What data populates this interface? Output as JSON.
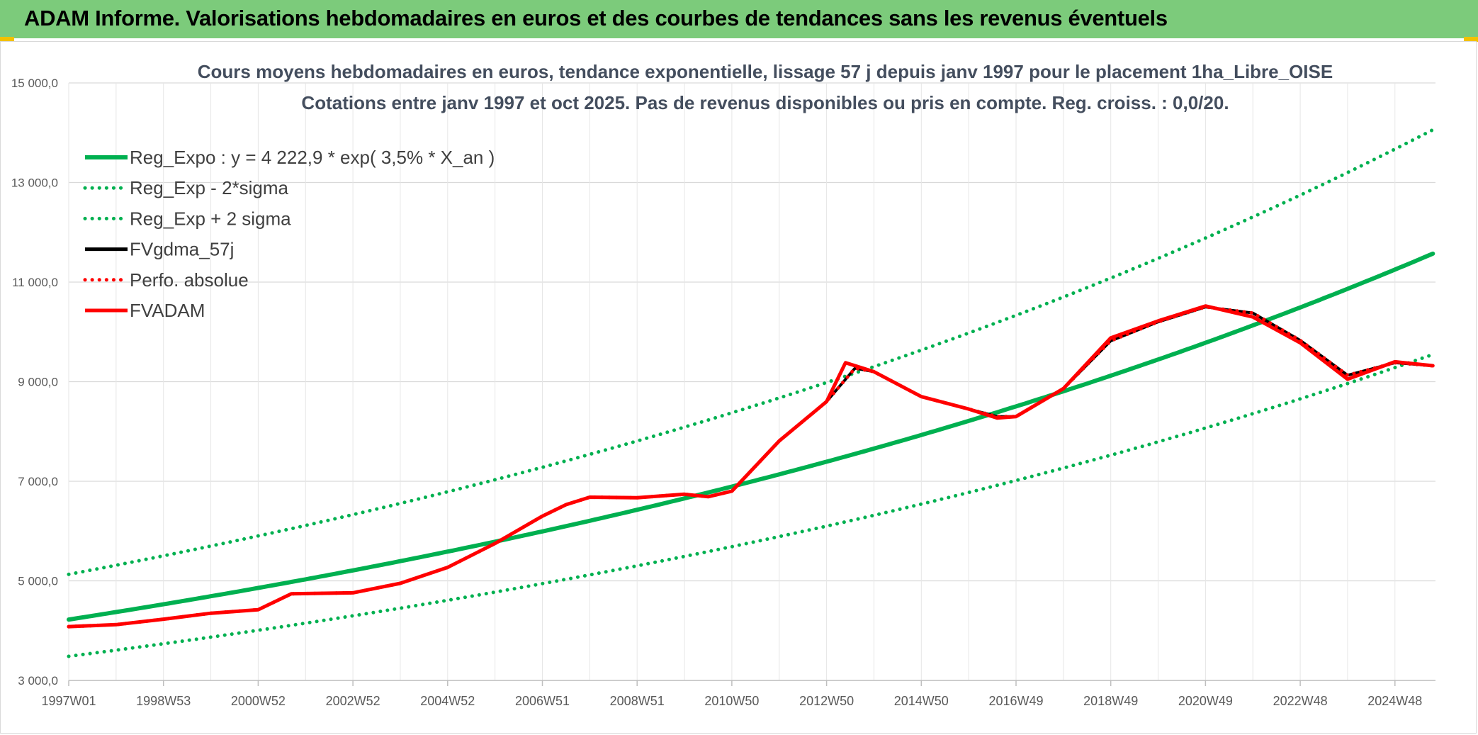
{
  "header": {
    "title": "ADAM Informe. Valorisations hebdomadaires en euros et des courbes de tendances sans les revenus éventuels"
  },
  "colors": {
    "banner": "#7ccb7b",
    "green": "#00b050",
    "red": "#ff0000",
    "black": "#000000",
    "grid": "#d9d9d9"
  },
  "chart_data": {
    "type": "line",
    "title": "Cours moyens hebdomadaires en euros, tendance exponentielle, lissage 57 j depuis janv 1997 pour le placement 1ha_Libre_OISE",
    "subtitle": "Cotations entre janv 1997 et oct 2025. Pas de revenus disponibles ou pris en compte. Reg. croiss. : 0,0/20.",
    "xlabel": "",
    "ylabel": "",
    "x_range": [
      1997.0,
      2025.8
    ],
    "ylim": [
      3000,
      15000
    ],
    "y_ticks": [
      {
        "value": 3000,
        "label": "3 000,0"
      },
      {
        "value": 5000,
        "label": "5 000,0"
      },
      {
        "value": 7000,
        "label": "7 000,0"
      },
      {
        "value": 9000,
        "label": "9 000,0"
      },
      {
        "value": 11000,
        "label": "11 000,0"
      },
      {
        "value": 13000,
        "label": "13 000,0"
      },
      {
        "value": 15000,
        "label": "15 000,0"
      }
    ],
    "x_ticks": [
      {
        "year": 1997.0,
        "label": "1997W01"
      },
      {
        "year": 1999.0,
        "label": "1998W53"
      },
      {
        "year": 2001.0,
        "label": "2000W52"
      },
      {
        "year": 2003.0,
        "label": "2002W52"
      },
      {
        "year": 2005.0,
        "label": "2004W52"
      },
      {
        "year": 2007.0,
        "label": "2006W51"
      },
      {
        "year": 2009.0,
        "label": "2008W51"
      },
      {
        "year": 2011.0,
        "label": "2010W50"
      },
      {
        "year": 2013.0,
        "label": "2012W50"
      },
      {
        "year": 2015.0,
        "label": "2014W50"
      },
      {
        "year": 2017.0,
        "label": "2016W49"
      },
      {
        "year": 2019.0,
        "label": "2018W49"
      },
      {
        "year": 2021.0,
        "label": "2020W49"
      },
      {
        "year": 2023.0,
        "label": "2022W48"
      },
      {
        "year": 2025.0,
        "label": "2024W48"
      }
    ],
    "grid": true,
    "legend_position": "top-left",
    "regression": {
      "a": 4222.9,
      "rate": 0.035,
      "start_year": 1997.0,
      "sigma_factor_upper": 1.215,
      "sigma_factor_lower": 0.825
    },
    "series": [
      {
        "name": "Reg_Expo : y = 4 222,9 * exp( 3,5% *  X_an )",
        "color": "#00b050",
        "style": "solid",
        "kind": "reg"
      },
      {
        "name": "Reg_Exp - 2*sigma",
        "color": "#00b050",
        "style": "dotted",
        "kind": "reg_lower"
      },
      {
        "name": "Reg_Exp + 2 sigma",
        "color": "#00b050",
        "style": "dotted",
        "kind": "reg_upper"
      },
      {
        "name": "FVgdma_57j",
        "color": "#000000",
        "style": "solid",
        "kind": "data",
        "x": [
          1997.0,
          1998.0,
          1999.0,
          2000.0,
          2001.0,
          2001.7,
          2003.0,
          2004.0,
          2005.0,
          2006.0,
          2007.0,
          2007.5,
          2008.0,
          2009.0,
          2010.0,
          2010.5,
          2011.0,
          2012.0,
          2013.0,
          2013.6,
          2014.0,
          2015.0,
          2016.0,
          2016.6,
          2017.0,
          2018.0,
          2019.0,
          2020.0,
          2021.0,
          2022.0,
          2023.0,
          2024.0,
          2025.0,
          2025.8
        ],
        "values": [
          4080,
          4120,
          4230,
          4350,
          4420,
          4740,
          4760,
          4950,
          5270,
          5750,
          6300,
          6530,
          6680,
          6670,
          6740,
          6690,
          6800,
          7810,
          8600,
          9270,
          9200,
          8700,
          8450,
          8300,
          8300,
          8860,
          9820,
          10200,
          10500,
          10380,
          9830,
          9130,
          9380,
          9320
        ]
      },
      {
        "name": "Perfo. absolue",
        "color": "#ff0000",
        "style": "dotted",
        "kind": "data",
        "x": [
          1997.0,
          1998.0,
          1999.0,
          2000.0,
          2001.0,
          2001.7,
          2003.0,
          2004.0,
          2005.0,
          2006.0,
          2007.0,
          2007.5,
          2008.0,
          2009.0,
          2010.0,
          2010.5,
          2011.0,
          2012.0,
          2013.0,
          2013.6,
          2014.0,
          2015.0,
          2016.0,
          2016.6,
          2017.0,
          2018.0,
          2019.0,
          2020.0,
          2021.0,
          2022.0,
          2023.0,
          2024.0,
          2025.0,
          2025.8
        ],
        "values": [
          4080,
          4120,
          4230,
          4350,
          4420,
          4740,
          4760,
          4950,
          5270,
          5750,
          6300,
          6530,
          6680,
          6670,
          6740,
          6690,
          6800,
          7810,
          8600,
          9270,
          9200,
          8700,
          8450,
          8300,
          8300,
          8860,
          9820,
          10200,
          10500,
          10380,
          9830,
          9130,
          9380,
          9320
        ]
      },
      {
        "name": "FVADAM",
        "color": "#ff0000",
        "style": "solid",
        "kind": "data",
        "x": [
          1997.0,
          1998.0,
          1999.0,
          2000.0,
          2001.0,
          2001.7,
          2003.0,
          2004.0,
          2005.0,
          2006.0,
          2007.0,
          2007.5,
          2008.0,
          2009.0,
          2010.0,
          2010.5,
          2011.0,
          2012.0,
          2013.0,
          2013.4,
          2014.0,
          2015.0,
          2016.0,
          2016.6,
          2017.0,
          2018.0,
          2019.0,
          2020.0,
          2021.0,
          2022.0,
          2023.0,
          2024.0,
          2025.0,
          2025.8
        ],
        "values": [
          4080,
          4120,
          4230,
          4350,
          4420,
          4740,
          4760,
          4950,
          5270,
          5750,
          6300,
          6530,
          6680,
          6670,
          6740,
          6690,
          6800,
          7810,
          8600,
          9380,
          9200,
          8700,
          8450,
          8270,
          8300,
          8860,
          9880,
          10220,
          10520,
          10300,
          9780,
          9050,
          9400,
          9320
        ]
      }
    ]
  }
}
